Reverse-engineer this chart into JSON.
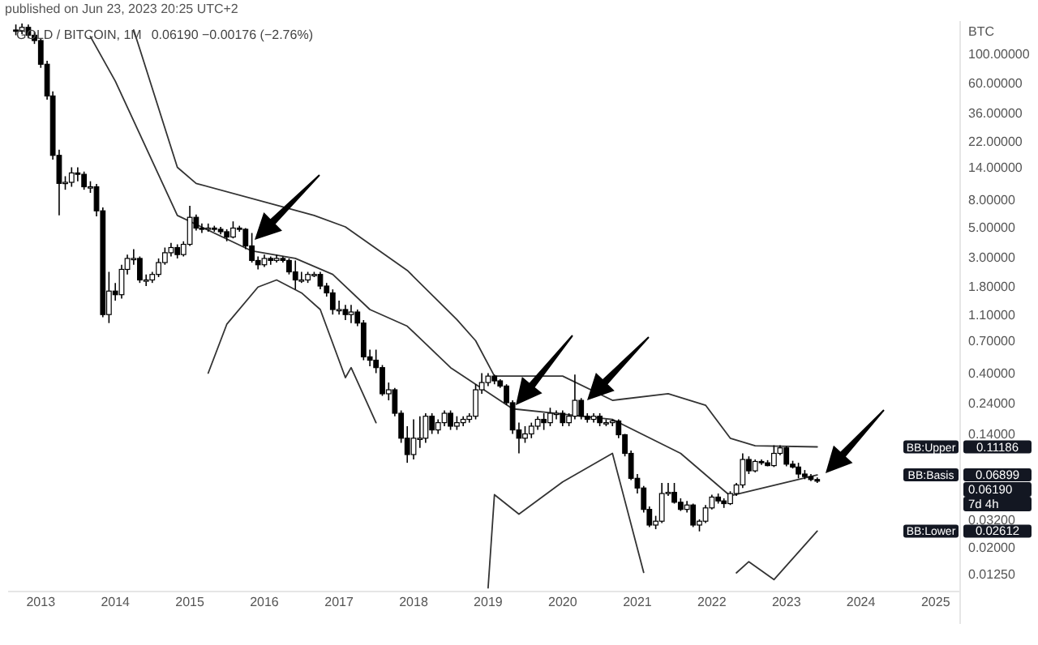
{
  "chart_data": {
    "type": "candlestick",
    "title": "GOLD / BITCOIN, 1M",
    "subtitle": "published on Jun 23, 2023 20:25 UTC+2",
    "ylabel": "BTC",
    "log": true,
    "annotations": [
      "0.06190 −0.00176 (−2.76%)",
      "0.11186",
      "0.06899",
      "0.02612",
      "0.06190",
      "7d 4h"
    ],
    "xlim": [
      "2012-07-25",
      "2025-05-01"
    ],
    "xticks": [
      "2013",
      "2014",
      "2015",
      "2016",
      "2017",
      "2018",
      "2019",
      "2020",
      "2021",
      "2022",
      "2023",
      "2024",
      "2025"
    ],
    "ylim": [
      0.0092,
      175
    ],
    "yticks": [
      {
        "value": 100,
        "label": "100.00000"
      },
      {
        "value": 60,
        "label": "60.00000"
      },
      {
        "value": 36,
        "label": "36.00000"
      },
      {
        "value": 22,
        "label": "22.00000"
      },
      {
        "value": 14,
        "label": "14.00000"
      },
      {
        "value": 8,
        "label": "8.00000"
      },
      {
        "value": 5,
        "label": "5.00000"
      },
      {
        "value": 3,
        "label": "3.00000"
      },
      {
        "value": 1.8,
        "label": "1.80000"
      },
      {
        "value": 1.1,
        "label": "1.10000"
      },
      {
        "value": 0.7,
        "label": "0.70000"
      },
      {
        "value": 0.4,
        "label": "0.40000"
      },
      {
        "value": 0.24,
        "label": "0.24000"
      },
      {
        "value": 0.14,
        "label": "0.14000"
      },
      {
        "value": 0.032,
        "label": "0.03200"
      },
      {
        "value": 0.02,
        "label": "0.02000"
      },
      {
        "value": 0.0125,
        "label": "0.01250"
      }
    ],
    "x": [
      "2012-09",
      "2012-10",
      "2012-11",
      "2012-12",
      "2013-01",
      "2013-02",
      "2013-03",
      "2013-04",
      "2013-05",
      "2013-06",
      "2013-07",
      "2013-08",
      "2013-09",
      "2013-10",
      "2013-11",
      "2013-12",
      "2014-01",
      "2014-02",
      "2014-03",
      "2014-04",
      "2014-05",
      "2014-06",
      "2014-07",
      "2014-08",
      "2014-09",
      "2014-10",
      "2014-11",
      "2014-12",
      "2015-01",
      "2015-02",
      "2015-03",
      "2015-04",
      "2015-05",
      "2015-06",
      "2015-07",
      "2015-08",
      "2015-09",
      "2015-10",
      "2015-11",
      "2015-12",
      "2016-01",
      "2016-02",
      "2016-03",
      "2016-04",
      "2016-05",
      "2016-06",
      "2016-07",
      "2016-08",
      "2016-09",
      "2016-10",
      "2016-11",
      "2016-12",
      "2017-01",
      "2017-02",
      "2017-03",
      "2017-04",
      "2017-05",
      "2017-06",
      "2017-07",
      "2017-08",
      "2017-09",
      "2017-10",
      "2017-11",
      "2017-12",
      "2018-01",
      "2018-02",
      "2018-03",
      "2018-04",
      "2018-05",
      "2018-06",
      "2018-07",
      "2018-08",
      "2018-09",
      "2018-10",
      "2018-11",
      "2018-12",
      "2019-01",
      "2019-02",
      "2019-03",
      "2019-04",
      "2019-05",
      "2019-06",
      "2019-07",
      "2019-08",
      "2019-09",
      "2019-10",
      "2019-11",
      "2019-12",
      "2020-01",
      "2020-02",
      "2020-03",
      "2020-04",
      "2020-05",
      "2020-06",
      "2020-07",
      "2020-08",
      "2020-09",
      "2020-10",
      "2020-11",
      "2020-12",
      "2021-01",
      "2021-02",
      "2021-03",
      "2021-04",
      "2021-05",
      "2021-06",
      "2021-07",
      "2021-08",
      "2021-09",
      "2021-10",
      "2021-11",
      "2021-12",
      "2022-01",
      "2022-02",
      "2022-03",
      "2022-04",
      "2022-05",
      "2022-06",
      "2022-07",
      "2022-08",
      "2022-09",
      "2022-10",
      "2022-11",
      "2022-12",
      "2023-01",
      "2023-02",
      "2023-03",
      "2023-04",
      "2023-05",
      "2023-06"
    ],
    "ohlc": [
      [
        150,
        165,
        137,
        147
      ],
      [
        147,
        168,
        140,
        157
      ],
      [
        157,
        165,
        130,
        137
      ],
      [
        137,
        145,
        118,
        125
      ],
      [
        125,
        130,
        78,
        83
      ],
      [
        83,
        88,
        45,
        48
      ],
      [
        48,
        52,
        16,
        17.2
      ],
      [
        17.2,
        19,
        6.1,
        10.6
      ],
      [
        10.6,
        12,
        9.5,
        10.8
      ],
      [
        10.8,
        14,
        10,
        12.7
      ],
      [
        12.7,
        14,
        11,
        12.4
      ],
      [
        12.4,
        13,
        9.5,
        10
      ],
      [
        10,
        11,
        9,
        10
      ],
      [
        10,
        10.5,
        6,
        6.6
      ],
      [
        6.6,
        7,
        1.05,
        1.1
      ],
      [
        1.1,
        2.3,
        0.95,
        1.65
      ],
      [
        1.65,
        1.9,
        1.4,
        1.55
      ],
      [
        1.55,
        2.6,
        1.45,
        2.4
      ],
      [
        2.4,
        3.1,
        2.2,
        2.9
      ],
      [
        2.9,
        3.4,
        2.6,
        2.9
      ],
      [
        2.9,
        3,
        1.9,
        2
      ],
      [
        2,
        2.2,
        1.8,
        2
      ],
      [
        2,
        2.3,
        1.9,
        2.2
      ],
      [
        2.2,
        2.9,
        2.1,
        2.7
      ],
      [
        2.7,
        3.5,
        2.6,
        3.2
      ],
      [
        3.2,
        3.8,
        3,
        3.5
      ],
      [
        3.5,
        3.7,
        2.9,
        3.1
      ],
      [
        3.1,
        3.9,
        3,
        3.7
      ],
      [
        3.7,
        7.2,
        3.6,
        5.9
      ],
      [
        5.9,
        6.2,
        4.7,
        4.9
      ],
      [
        4.9,
        5.3,
        4.5,
        4.8
      ],
      [
        4.8,
        5.3,
        4.6,
        4.9
      ],
      [
        4.9,
        5.1,
        4.6,
        4.8
      ],
      [
        4.8,
        5,
        4.4,
        4.6
      ],
      [
        4.6,
        4.8,
        3.9,
        4.2
      ],
      [
        4.2,
        5.5,
        4.1,
        4.9
      ],
      [
        4.9,
        5.1,
        4.6,
        4.8
      ],
      [
        4.8,
        4.9,
        3.4,
        3.6
      ],
      [
        3.6,
        4.5,
        2.7,
        2.8
      ],
      [
        2.8,
        3,
        2.4,
        2.6
      ],
      [
        2.6,
        3.1,
        2.5,
        2.9
      ],
      [
        2.9,
        3,
        2.6,
        2.8
      ],
      [
        2.8,
        3.1,
        2.7,
        2.9
      ],
      [
        2.9,
        3,
        2.7,
        2.8
      ],
      [
        2.8,
        2.9,
        2.2,
        2.3
      ],
      [
        2.3,
        2.8,
        1.7,
        2
      ],
      [
        2,
        2.3,
        1.9,
        2
      ],
      [
        2,
        2.3,
        1.9,
        2.2
      ],
      [
        2.2,
        2.3,
        2.1,
        2.2
      ],
      [
        2.2,
        2.3,
        1.7,
        1.8
      ],
      [
        1.8,
        1.9,
        1.5,
        1.6
      ],
      [
        1.6,
        1.7,
        1.1,
        1.2
      ],
      [
        1.2,
        1.4,
        1.1,
        1.2
      ],
      [
        1.2,
        1.3,
        1,
        1.1
      ],
      [
        1.1,
        1.3,
        0.95,
        1.15
      ],
      [
        1.15,
        1.2,
        0.9,
        0.95
      ],
      [
        0.95,
        1,
        0.5,
        0.53
      ],
      [
        0.53,
        0.6,
        0.45,
        0.5
      ],
      [
        0.5,
        0.6,
        0.4,
        0.44
      ],
      [
        0.44,
        0.46,
        0.27,
        0.28
      ],
      [
        0.28,
        0.34,
        0.25,
        0.3
      ],
      [
        0.3,
        0.31,
        0.19,
        0.2
      ],
      [
        0.2,
        0.21,
        0.12,
        0.13
      ],
      [
        0.13,
        0.16,
        0.085,
        0.098
      ],
      [
        0.098,
        0.18,
        0.09,
        0.13
      ],
      [
        0.13,
        0.19,
        0.11,
        0.13
      ],
      [
        0.13,
        0.2,
        0.12,
        0.19
      ],
      [
        0.19,
        0.2,
        0.14,
        0.15
      ],
      [
        0.15,
        0.18,
        0.14,
        0.17
      ],
      [
        0.17,
        0.21,
        0.16,
        0.2
      ],
      [
        0.2,
        0.21,
        0.15,
        0.16
      ],
      [
        0.16,
        0.19,
        0.15,
        0.17
      ],
      [
        0.17,
        0.19,
        0.16,
        0.18
      ],
      [
        0.18,
        0.2,
        0.17,
        0.19
      ],
      [
        0.19,
        0.33,
        0.18,
        0.3
      ],
      [
        0.3,
        0.4,
        0.28,
        0.34
      ],
      [
        0.34,
        0.4,
        0.32,
        0.38
      ],
      [
        0.38,
        0.39,
        0.33,
        0.35
      ],
      [
        0.35,
        0.36,
        0.31,
        0.32
      ],
      [
        0.32,
        0.33,
        0.23,
        0.24
      ],
      [
        0.24,
        0.25,
        0.14,
        0.15
      ],
      [
        0.15,
        0.17,
        0.1,
        0.13
      ],
      [
        0.13,
        0.16,
        0.12,
        0.14
      ],
      [
        0.14,
        0.17,
        0.13,
        0.16
      ],
      [
        0.16,
        0.19,
        0.15,
        0.18
      ],
      [
        0.18,
        0.2,
        0.15,
        0.17
      ],
      [
        0.17,
        0.22,
        0.16,
        0.2
      ],
      [
        0.2,
        0.21,
        0.18,
        0.2
      ],
      [
        0.2,
        0.21,
        0.16,
        0.17
      ],
      [
        0.17,
        0.2,
        0.16,
        0.19
      ],
      [
        0.19,
        0.39,
        0.18,
        0.25
      ],
      [
        0.25,
        0.26,
        0.18,
        0.19
      ],
      [
        0.19,
        0.2,
        0.17,
        0.18
      ],
      [
        0.18,
        0.2,
        0.17,
        0.19
      ],
      [
        0.19,
        0.2,
        0.16,
        0.17
      ],
      [
        0.17,
        0.18,
        0.16,
        0.17
      ],
      [
        0.17,
        0.18,
        0.16,
        0.175
      ],
      [
        0.175,
        0.18,
        0.13,
        0.138
      ],
      [
        0.138,
        0.14,
        0.095,
        0.1
      ],
      [
        0.1,
        0.105,
        0.063,
        0.065
      ],
      [
        0.065,
        0.07,
        0.05,
        0.055
      ],
      [
        0.055,
        0.057,
        0.036,
        0.038
      ],
      [
        0.038,
        0.04,
        0.028,
        0.029
      ],
      [
        0.029,
        0.034,
        0.027,
        0.031
      ],
      [
        0.031,
        0.06,
        0.03,
        0.05
      ],
      [
        0.05,
        0.06,
        0.048,
        0.051
      ],
      [
        0.051,
        0.06,
        0.042,
        0.043
      ],
      [
        0.043,
        0.046,
        0.037,
        0.038
      ],
      [
        0.038,
        0.044,
        0.036,
        0.041
      ],
      [
        0.041,
        0.042,
        0.028,
        0.029
      ],
      [
        0.029,
        0.032,
        0.026,
        0.031
      ],
      [
        0.031,
        0.041,
        0.03,
        0.039
      ],
      [
        0.039,
        0.049,
        0.038,
        0.047
      ],
      [
        0.047,
        0.05,
        0.042,
        0.044
      ],
      [
        0.044,
        0.046,
        0.039,
        0.042
      ],
      [
        0.042,
        0.052,
        0.041,
        0.05
      ],
      [
        0.05,
        0.06,
        0.048,
        0.058
      ],
      [
        0.058,
        0.1,
        0.055,
        0.09
      ],
      [
        0.09,
        0.095,
        0.07,
        0.074
      ],
      [
        0.074,
        0.09,
        0.072,
        0.087
      ],
      [
        0.087,
        0.09,
        0.082,
        0.085
      ],
      [
        0.085,
        0.089,
        0.08,
        0.081
      ],
      [
        0.081,
        0.115,
        0.079,
        0.1
      ],
      [
        0.1,
        0.115,
        0.097,
        0.11
      ],
      [
        0.11,
        0.113,
        0.08,
        0.083
      ],
      [
        0.083,
        0.088,
        0.077,
        0.079
      ],
      [
        0.079,
        0.085,
        0.065,
        0.07
      ],
      [
        0.07,
        0.075,
        0.064,
        0.067
      ],
      [
        0.067,
        0.07,
        0.062,
        0.06366
      ],
      [
        0.06366,
        0.066,
        0.06,
        0.0619
      ]
    ],
    "series": [
      {
        "name": "BB:Upper",
        "type": "line",
        "color": "#333333",
        "x": [
          "2014-04",
          "2014-05",
          "2014-11",
          "2015-02",
          "2016-09",
          "2017-02",
          "2017-12",
          "2018-08",
          "2018-11",
          "2019-02",
          "2020-01",
          "2020-09",
          "2021-06",
          "2021-12",
          "2022-04",
          "2022-08",
          "2023-06"
        ],
        "values": [
          150,
          108,
          14,
          10.6,
          6.1,
          5,
          2.36,
          1.01,
          0.7,
          0.38,
          0.38,
          0.25,
          0.28,
          0.23,
          0.13,
          0.114,
          0.11186
        ]
      },
      {
        "name": "BB:Basis",
        "type": "line",
        "color": "#333333",
        "x": [
          "2013-09",
          "2014-01",
          "2014-11",
          "2015-11",
          "2016-06",
          "2016-12",
          "2017-06",
          "2017-12",
          "2018-07",
          "2019-05",
          "2020-09",
          "2021-08",
          "2022-04",
          "2023-06"
        ],
        "values": [
          134,
          62,
          6.1,
          3.3,
          2.9,
          2.2,
          1.2,
          0.9,
          0.44,
          0.216,
          0.18,
          0.1,
          0.048,
          0.06899
        ]
      },
      {
        "name": "BB:Lower",
        "type": "line",
        "color": "#333333",
        "x": [
          "2015-04",
          "2015-07",
          "2015-12",
          "2016-03",
          "2016-07",
          "2016-10",
          "2017-02",
          "2017-03",
          "2017-07",
          "2018-06",
          "2019-01",
          "2019-02",
          "2019-06",
          "2020-01",
          "2020-09",
          "2021-02",
          "2021-10",
          "2022-05",
          "2022-07",
          "2022-11",
          "2023-06"
        ],
        "values": [
          0.4,
          0.93,
          1.77,
          2,
          1.6,
          1.2,
          0.37,
          0.44,
          0.17,
          null,
          0.0098,
          0.049,
          0.035,
          0.061,
          0.1,
          0.0128,
          null,
          0.0127,
          0.0154,
          0.0113,
          0.02612
        ]
      }
    ]
  }
}
